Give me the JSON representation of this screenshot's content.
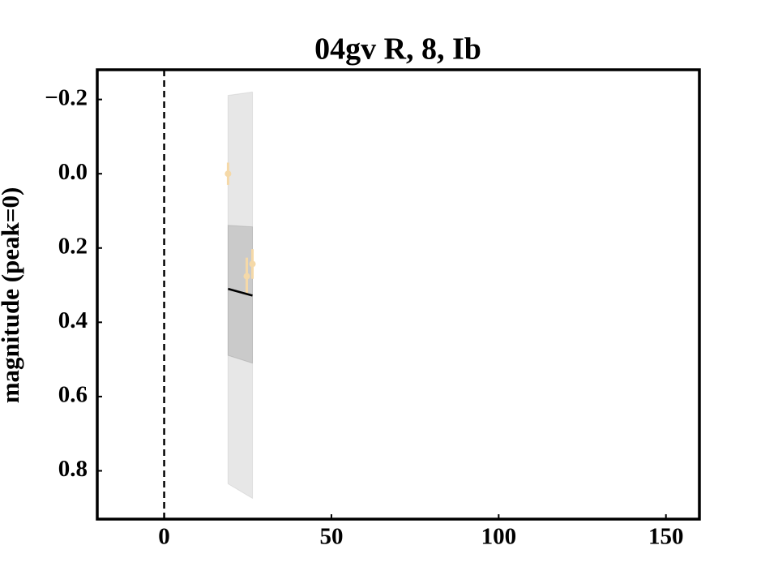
{
  "chart_data": {
    "type": "line",
    "title": "04gv R, 8, Ib",
    "y_label": "magnitude (peak=0)",
    "xlim": [
      -20,
      160
    ],
    "ylim": [
      -0.28,
      0.93
    ],
    "invert_y": true,
    "xticks": [
      0,
      50,
      100,
      150
    ],
    "yticks": [
      {
        "value": -0.2,
        "label": "−0.2"
      },
      {
        "value": 0,
        "label": "0.0"
      },
      0.2,
      0.4,
      0.6,
      0.8
    ],
    "vline": 0,
    "bands": [
      {
        "x": [
          19.1,
          26.4
        ],
        "lower": [
          -0.211,
          -0.22
        ],
        "upper": [
          0.835,
          0.874
        ],
        "color": "#bbbbbb",
        "opacity": 0.35
      },
      {
        "x": [
          19.1,
          26.4
        ],
        "lower": [
          0.139,
          0.143
        ],
        "upper": [
          0.489,
          0.51
        ],
        "color": "#888888",
        "opacity": 0.3
      }
    ],
    "line": {
      "x": [
        19.1,
        26.4
      ],
      "values": [
        0.31,
        0.328
      ],
      "color": "#000000"
    },
    "points": {
      "x": [
        19.1,
        24.7,
        26.4
      ],
      "values": [
        0.0,
        0.276,
        0.243
      ],
      "errors": [
        0.03,
        0.05,
        0.04
      ],
      "color": "#f5d9a8"
    }
  }
}
